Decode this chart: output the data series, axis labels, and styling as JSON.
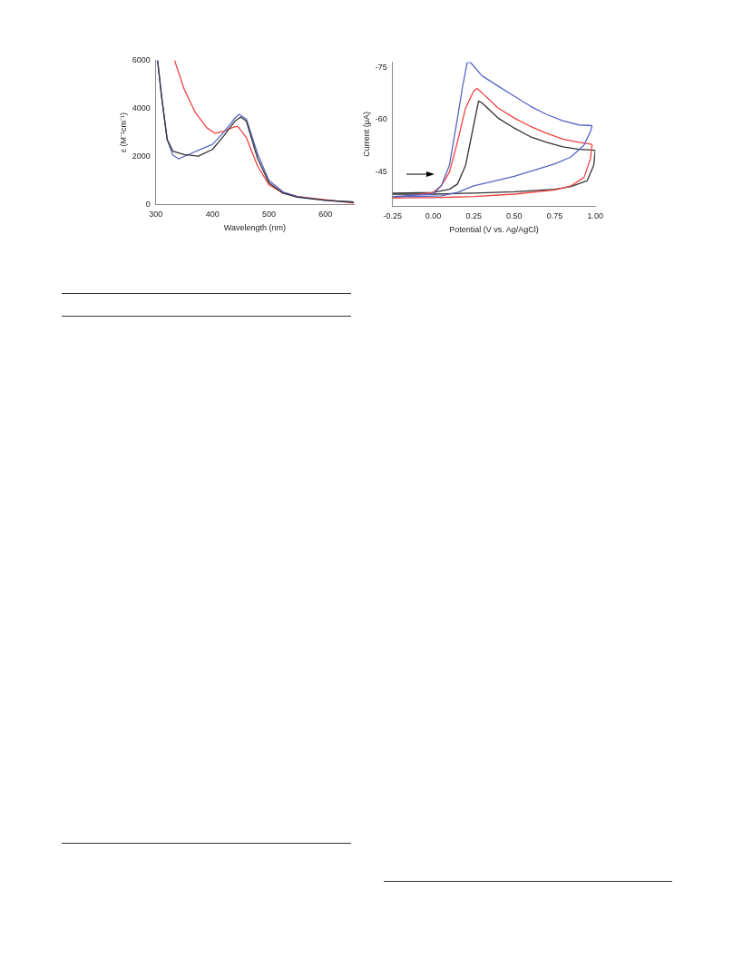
{
  "chart_data": [
    {
      "type": "line",
      "xlabel": "Wavelength (nm)",
      "ylabel": "ε (M⁻¹cm⁻¹)",
      "xlim": [
        300,
        650
      ],
      "xticks": [
        300,
        400,
        500,
        600
      ],
      "ylim": [
        0,
        6000
      ],
      "yticks": [
        0,
        2000,
        4000,
        6000
      ],
      "grid": false,
      "legend": false,
      "marker": "none",
      "line_style": "solid",
      "series": [
        {
          "color": "#333333",
          "x": [
            303,
            310,
            320,
            330,
            350,
            375,
            400,
            420,
            440,
            450,
            460,
            480,
            500,
            525,
            550,
            600,
            650
          ],
          "values": [
            6000,
            4520,
            2700,
            2220,
            2080,
            2010,
            2290,
            2850,
            3470,
            3640,
            3470,
            1900,
            900,
            470,
            300,
            170,
            100
          ]
        },
        {
          "color": "#5566c4",
          "x": [
            303,
            310,
            320,
            330,
            340,
            360,
            380,
            400,
            420,
            440,
            447,
            460,
            480,
            500,
            525,
            550,
            600,
            650
          ],
          "values": [
            6000,
            4500,
            2700,
            2050,
            1900,
            2100,
            2300,
            2500,
            3000,
            3600,
            3750,
            3550,
            2100,
            1000,
            520,
            330,
            170,
            100
          ]
        },
        {
          "color": "#f04040",
          "x": [
            333,
            350,
            370,
            390,
            405,
            420,
            440,
            445,
            460,
            480,
            500,
            525,
            550,
            600,
            650
          ],
          "values": [
            6000,
            4800,
            3820,
            3190,
            2960,
            3050,
            3240,
            3250,
            2780,
            1590,
            820,
            470,
            330,
            200,
            60
          ]
        }
      ]
    },
    {
      "type": "line",
      "xlabel": "Potential (V vs. Ag/AgCl)",
      "ylabel": "Current (μA)",
      "xlim": [
        -0.25,
        1.0
      ],
      "xticks": [
        {
          "value": -0.25,
          "label": "-0.25"
        },
        {
          "value": 0,
          "label": "0.00"
        },
        {
          "value": 0.25,
          "label": "0.25"
        },
        {
          "value": 0.5,
          "label": "0.50"
        },
        {
          "value": 0.75,
          "label": "0.75"
        },
        {
          "value": 1.0,
          "label": "1.00"
        }
      ],
      "ylim": [
        -35,
        -76.5
      ],
      "yticks": [
        -75,
        -60,
        -45
      ],
      "grid": false,
      "legend": false,
      "marker": "none",
      "line_style": "solid",
      "series": [
        {
          "color": "#5566c4",
          "x": [
            -0.25,
            0.0,
            0.05,
            0.1,
            0.15,
            0.18,
            0.21,
            0.23,
            0.3,
            0.4,
            0.5,
            0.6,
            0.7,
            0.8,
            0.9,
            0.98
          ],
          "values": [
            -37.8,
            -38.5,
            -40.9,
            -46.8,
            -60.4,
            -69.1,
            -76.4,
            -76.4,
            -72.6,
            -69.6,
            -66.7,
            -63.8,
            -61.4,
            -59.6,
            -58.4,
            -58.2
          ]
        },
        {
          "color": "#5566c4",
          "x": [
            0.98,
            0.97,
            0.93,
            0.85,
            0.75,
            0.5,
            0.25,
            0.15,
            0.05,
            -0.1,
            -0.25
          ],
          "values": [
            -58.2,
            -56.5,
            -52.6,
            -49.2,
            -47.2,
            -43.6,
            -40.9,
            -39.0,
            -38.0,
            -37.8,
            -37.8
          ]
        },
        {
          "color": "#f04040",
          "x": [
            -0.25,
            0.0,
            0.05,
            0.1,
            0.15,
            0.2,
            0.25,
            0.27,
            0.3,
            0.4,
            0.5,
            0.6,
            0.7,
            0.8,
            0.9,
            0.98
          ],
          "values": [
            -37.4,
            -39.0,
            -40.9,
            -44.8,
            -53.6,
            -63.3,
            -68.2,
            -68.9,
            -67.7,
            -63.3,
            -60.4,
            -58.0,
            -56.0,
            -54.3,
            -53.4,
            -52.8
          ]
        },
        {
          "color": "#f04040",
          "x": [
            0.98,
            0.97,
            0.93,
            0.85,
            0.75,
            0.5,
            0.25,
            0.0,
            -0.25
          ],
          "values": [
            -52.8,
            -48.7,
            -43.3,
            -40.9,
            -39.7,
            -38.5,
            -37.8,
            -37.5,
            -37.4
          ]
        },
        {
          "color": "#333333",
          "x": [
            -0.25,
            0.0,
            0.1,
            0.15,
            0.2,
            0.25,
            0.28,
            0.3,
            0.4,
            0.5,
            0.6,
            0.7,
            0.8,
            0.9,
            1.0
          ],
          "values": [
            -38.8,
            -39.0,
            -39.9,
            -41.4,
            -46.8,
            -58.4,
            -65.3,
            -64.8,
            -60.4,
            -57.5,
            -55.0,
            -53.4,
            -52.1,
            -51.4,
            -51.1
          ]
        },
        {
          "color": "#333333",
          "x": [
            1.0,
            0.99,
            0.95,
            0.85,
            0.75,
            0.5,
            0.25,
            0.0,
            -0.25
          ],
          "values": [
            -51.1,
            -46.8,
            -42.4,
            -40.7,
            -39.9,
            -39.2,
            -38.8,
            -38.5,
            -38.5
          ]
        }
      ]
    }
  ]
}
